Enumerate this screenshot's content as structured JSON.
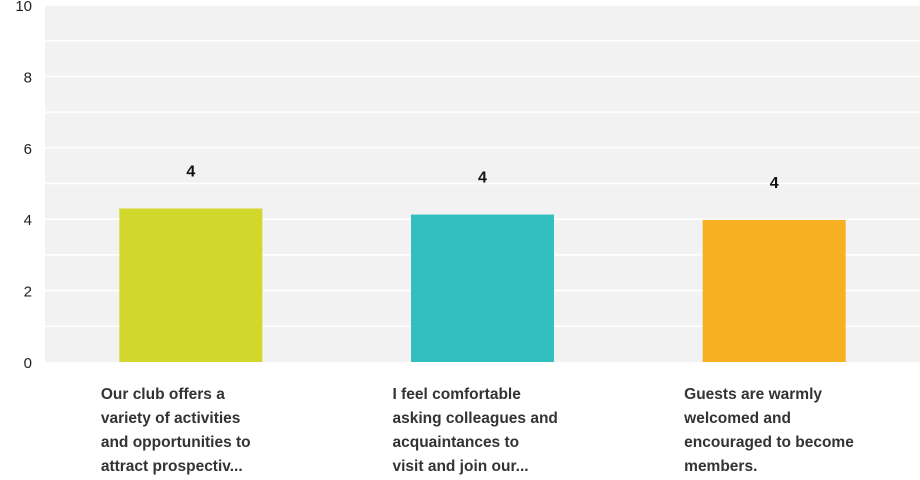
{
  "chart_data": {
    "type": "bar",
    "title": "",
    "xlabel": "",
    "ylabel": "",
    "ylim": [
      0,
      10
    ],
    "yticks": [
      0,
      2,
      4,
      6,
      8,
      10
    ],
    "grid": true,
    "categories": [
      "Our club offers a\nvariety of activities\nand opportunities to\nattract prospectiv...",
      "I feel comfortable\nasking colleagues and\nacquaintances to\nvisit and join our...",
      "Guests are warmly\nwelcomed and\nencouraged to become\nmembers."
    ],
    "values": [
      4.3,
      4.13,
      3.98
    ],
    "data_labels": [
      "4",
      "4",
      "4"
    ],
    "colors": [
      "#d2d72b",
      "#33bebf",
      "#f7b021"
    ],
    "plot_background": "#f2f2f2",
    "gridline_color": "#ffffff"
  }
}
